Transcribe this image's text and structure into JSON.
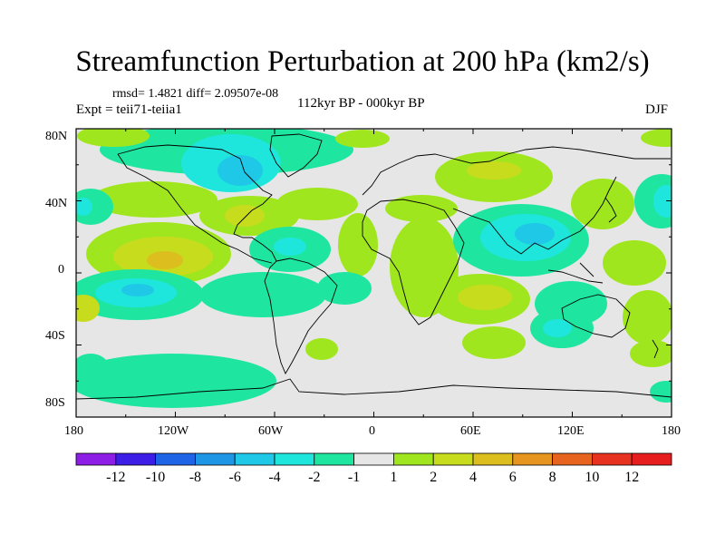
{
  "title": "Streamfunction Perturbation at 200 hPa (km2/s)",
  "stats": "rmsd= 1.4821 diff= 2.09507e-08",
  "experiment": "Expt = teii71-teiia1",
  "period": "112kyr BP - 000kyr BP",
  "season": "DJF",
  "axes": {
    "y_ticks": [
      "80N",
      "40N",
      "0",
      "40S",
      "80S"
    ],
    "x_ticks": [
      "180",
      "120W",
      "60W",
      "0",
      "60E",
      "120E",
      "180"
    ]
  },
  "colorbar": {
    "labels": [
      "-12",
      "-10",
      "-8",
      "-6",
      "-4",
      "-2",
      "-1",
      "1",
      "2",
      "4",
      "6",
      "8",
      "10",
      "12"
    ],
    "colors": [
      "#8c1ee6",
      "#3c1ee6",
      "#1e64e6",
      "#1e96e6",
      "#1ec8e6",
      "#1ee6dc",
      "#1ee6a0",
      "#e6e6e6",
      "#a0e61e",
      "#c8dc1e",
      "#dcbe1e",
      "#e6961e",
      "#e6641e",
      "#e6321e",
      "#e61e1e"
    ]
  },
  "colors": {
    "neutral": "#e6e6e6",
    "pos_weak": "#a0e61e",
    "pos_mid": "#c8dc1e",
    "pos_strong": "#dcbe1e",
    "pos_max": "#e6961e",
    "neg_weak": "#1ee6a0",
    "neg_mid": "#1ee6dc",
    "neg_strong": "#1ec8e6",
    "neg_max": "#1e96e6",
    "coast": "#000000"
  }
}
